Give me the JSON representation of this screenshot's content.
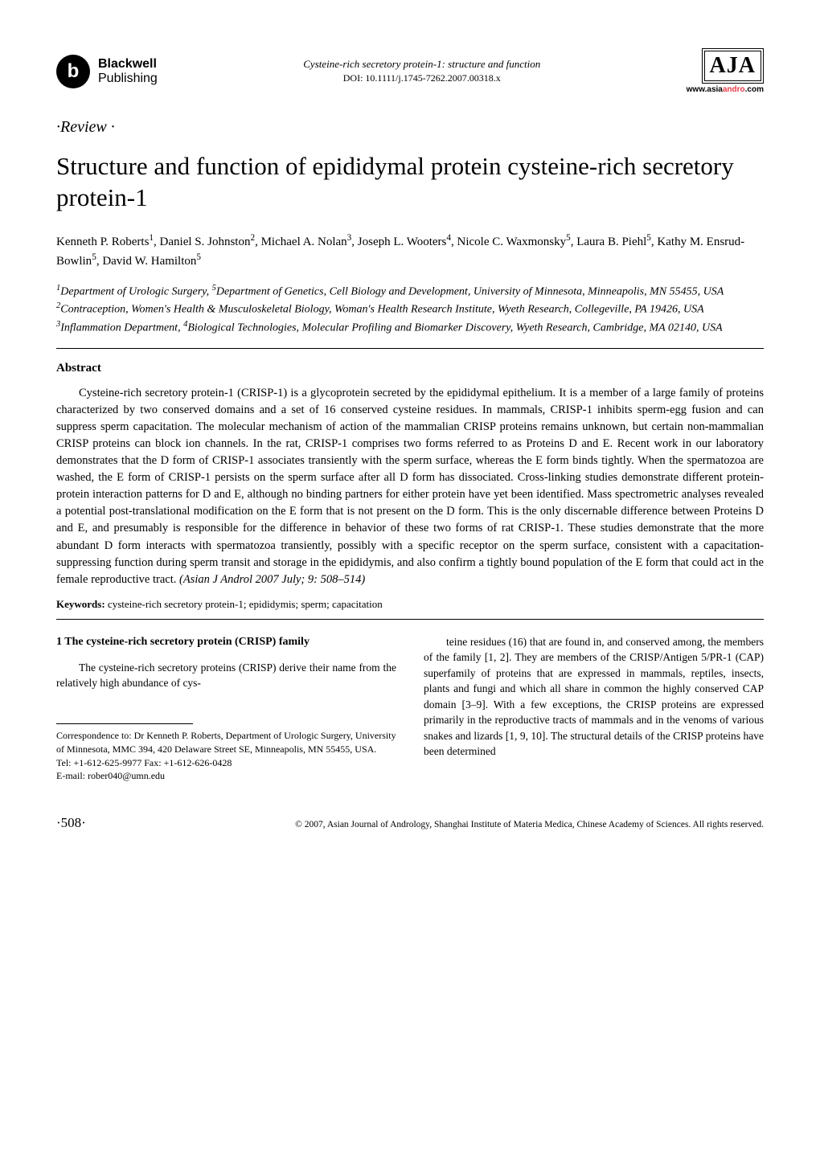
{
  "meta": {
    "running_head": "Cysteine-rich secretory protein-1: structure and function",
    "doi": "DOI: 10.1111/j.1745-7262.2007.00318.x"
  },
  "publisher": {
    "logo_glyph": "b",
    "name_bold": "Blackwell",
    "name_reg": "Publishing"
  },
  "journal": {
    "abbrev": "AJA",
    "url_prefix": "www.",
    "url_asia": "asia",
    "url_andro": "andro",
    "url_suffix": ".com"
  },
  "article": {
    "section_label": "·Review ·",
    "title": "Structure and function of epididymal protein cysteine-rich secretory protein-1",
    "authors_html": "Kenneth P. Roberts<sup>1</sup>, Daniel S. Johnston<sup>2</sup>, Michael A. Nolan<sup>3</sup>, Joseph L. Wooters<sup>4</sup>, Nicole C. Waxmonsky<sup>5</sup>, Laura B. Piehl<sup>5</sup>, Kathy M. Ensrud-Bowlin<sup>5</sup>, David W. Hamilton<sup>5</sup>",
    "affiliations_html": "<sup>1</sup>Department of Urologic Surgery, <sup>5</sup>Department of Genetics, Cell Biology and Development, University of Minnesota, Minneapolis, MN 55455, USA<br><sup>2</sup>Contraception, Women's Health & Musculoskeletal Biology, Woman's Health Research Institute, Wyeth Research, Collegeville, PA 19426, USA<br><sup>3</sup>Inflammation Department, <sup>4</sup>Biological Technologies, Molecular Profiling and Biomarker Discovery, Wyeth Research, Cambridge, MA 02140, USA"
  },
  "abstract": {
    "heading": "Abstract",
    "body": "Cysteine-rich secretory protein-1 (CRISP-1) is a glycoprotein secreted by the epididymal epithelium. It is a member of a large family of proteins characterized by two conserved domains and a set of 16 conserved cysteine residues. In mammals, CRISP-1 inhibits sperm-egg fusion and can suppress sperm capacitation. The molecular mechanism of action of the mammalian CRISP proteins remains unknown, but certain non-mammalian CRISP proteins can block ion channels. In the rat, CRISP-1 comprises two forms referred to as Proteins D and E. Recent work in our laboratory demonstrates that the D form of CRISP-1 associates transiently with the sperm surface, whereas the E form binds tightly. When the spermatozoa are washed, the E form of CRISP-1 persists on the sperm surface after all D form has dissociated. Cross-linking studies demonstrate different protein-protein interaction patterns for D and E, although no binding partners for either protein have yet been identified. Mass spectrometric analyses revealed a potential post-translational modification on the E form that is not present on the D form. This is the only discernable difference between Proteins D and E, and presumably is responsible for the difference in behavior of these two forms of rat CRISP-1. These studies demonstrate that the more abundant D form interacts with spermatozoa transiently, possibly with a specific receptor on the sperm surface, consistent with a capacitation-suppressing function during sperm transit and storage in the epididymis, and also confirm a tightly bound population of the E form that could act in the female reproductive tract. ",
    "citation": "(Asian J Androl 2007 July; 9: 508–514)"
  },
  "keywords": {
    "label": "Keywords:",
    "text": "  cysteine-rich secretory protein-1; epididymis; sperm; capacitation"
  },
  "body": {
    "section1_heading": "1    The cysteine-rich secretory protein (CRISP) family",
    "col1_p1": "The cysteine-rich secretory proteins (CRISP) derive their name from the relatively high abundance of cys-",
    "col2_p1": "teine residues (16) that are found in, and conserved among, the members of the family [1, 2]. They are members of the CRISP/Antigen 5/PR-1 (CAP) superfamily of proteins that are expressed in mammals, reptiles, insects, plants and fungi and which all share in common the highly conserved CAP domain [3–9]. With a few exceptions, the CRISP proteins are expressed primarily in the reproductive tracts of mammals and in the venoms of various snakes and lizards [1, 9, 10]. The structural details of the CRISP proteins have been determined"
  },
  "correspondence": {
    "line1": "Correspondence to: Dr Kenneth P. Roberts, Department of Urologic Surgery, University of Minnesota, MMC 394, 420 Delaware Street SE, Minneapolis, MN 55455, USA.",
    "line2": "Tel: +1-612-625-9977    Fax: +1-612-626-0428",
    "line3": "E-mail: rober040@umn.edu"
  },
  "footer": {
    "page": "·508·",
    "copyright": "© 2007, Asian Journal of Andrology, Shanghai Institute of Materia Medica, Chinese Academy of Sciences. All rights reserved."
  },
  "colors": {
    "text": "#000000",
    "background": "#ffffff",
    "accent_red": "#e63946"
  },
  "typography": {
    "body_family": "Georgia, 'Times New Roman', serif",
    "title_size_pt": 31,
    "abstract_size_pt": 14.5,
    "body_size_pt": 13.5,
    "keywords_size_pt": 13,
    "footer_size_pt": 11.5
  }
}
